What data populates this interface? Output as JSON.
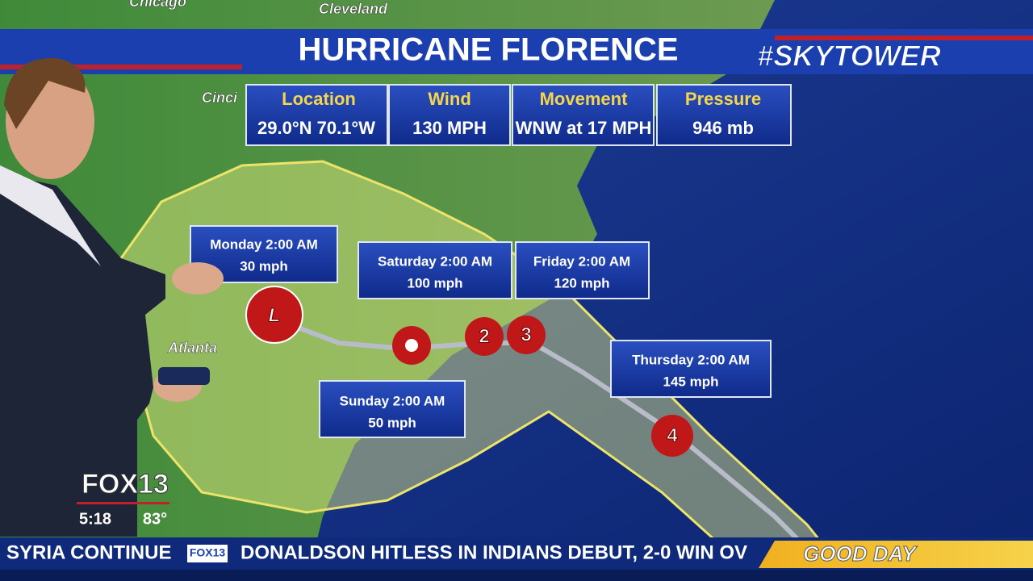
{
  "header": {
    "title": "HURRICANE FLORENCE",
    "brand": "#SKYTOWER"
  },
  "info": [
    {
      "label": "Location",
      "value": "29.0°N  70.1°W"
    },
    {
      "label": "Wind",
      "value": "130 MPH"
    },
    {
      "label": "Movement",
      "value": "WNW at 17 MPH"
    },
    {
      "label": "Pressure",
      "value": "946 mb"
    }
  ],
  "map_labels": [
    "Chicago",
    "Cleveland",
    "Cinci",
    "Atlanta"
  ],
  "forecast": [
    {
      "time": "Monday 2:00 AM",
      "wind": "30 mph"
    },
    {
      "time": "Saturday 2:00 AM",
      "wind": "100 mph"
    },
    {
      "time": "Friday 2:00 AM",
      "wind": "120 mph"
    },
    {
      "time": "Sunday 2:00 AM",
      "wind": "50 mph"
    },
    {
      "time": "Thursday 2:00 AM",
      "wind": "145 mph"
    }
  ],
  "storm_icons": [
    "L",
    "2",
    "3",
    "4"
  ],
  "station": {
    "logo": "FOX13",
    "time": "5:18",
    "temperature": "83°"
  },
  "ticker": {
    "left": "SYRIA CONTINUE",
    "logo": "FOX13",
    "headline": "DONALDSON HITLESS IN INDIANS DEBUT, 2-0 WIN OV",
    "show": "GOOD DAY"
  }
}
